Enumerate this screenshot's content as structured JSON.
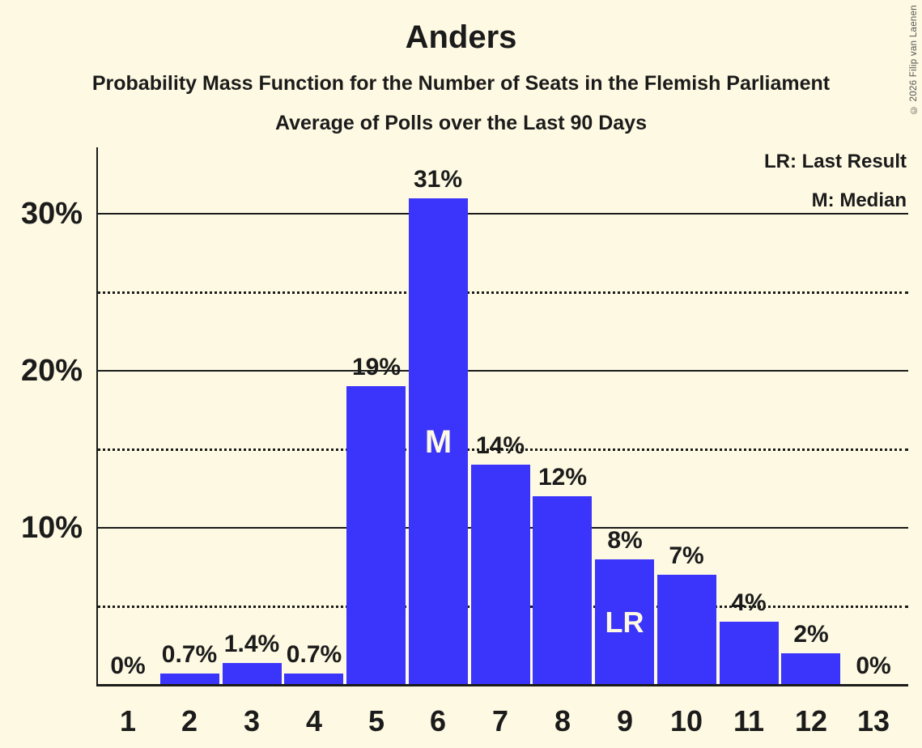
{
  "title": "Anders",
  "subtitles": [
    "Probability Mass Function for the Number of Seats in the Flemish Parliament",
    "Average of Polls over the Last 90 Days"
  ],
  "copyright": "© 2026 Filip van Laenen",
  "legend": {
    "lr_label": "LR: Last Result",
    "m_label": "M: Median"
  },
  "colors": {
    "background": "#FDF9E2",
    "bar": "#3B35FB",
    "text": "#1B1B1B",
    "bar_annotation_text": "#FDF9E2",
    "copyright_text": "#555555"
  },
  "y_axis": {
    "tick_labels": [
      "10%",
      "20%",
      "30%"
    ],
    "solid_gridlines_pct": [
      10,
      20,
      30
    ],
    "dotted_gridlines_pct": [
      5,
      15,
      25
    ]
  },
  "chart_data": {
    "type": "bar",
    "title": "Anders",
    "subtitle": "Probability Mass Function for the Number of Seats in the Flemish Parliament",
    "period": "Average of Polls over the Last 90 Days",
    "categories": [
      "1",
      "2",
      "3",
      "4",
      "5",
      "6",
      "7",
      "8",
      "9",
      "10",
      "11",
      "12",
      "13"
    ],
    "values": [
      0,
      0.7,
      1.4,
      0.7,
      19,
      31,
      14,
      12,
      8,
      7,
      4,
      2,
      0
    ],
    "bar_labels": [
      "0%",
      "0.7%",
      "1.4%",
      "0.7%",
      "19%",
      "31%",
      "14%",
      "12%",
      "8%",
      "7%",
      "4%",
      "2%",
      "0%"
    ],
    "annotations": [
      {
        "category": "6",
        "text": "M",
        "meaning": "Median"
      },
      {
        "category": "9",
        "text": "LR",
        "meaning": "Last Result"
      }
    ],
    "xlabel": "",
    "ylabel": "",
    "ylim": [
      0,
      34.2
    ],
    "grid": "solid horizontal lines at 10/20/30%, dotted at 5/15/25%",
    "legend_position": "top-right"
  }
}
